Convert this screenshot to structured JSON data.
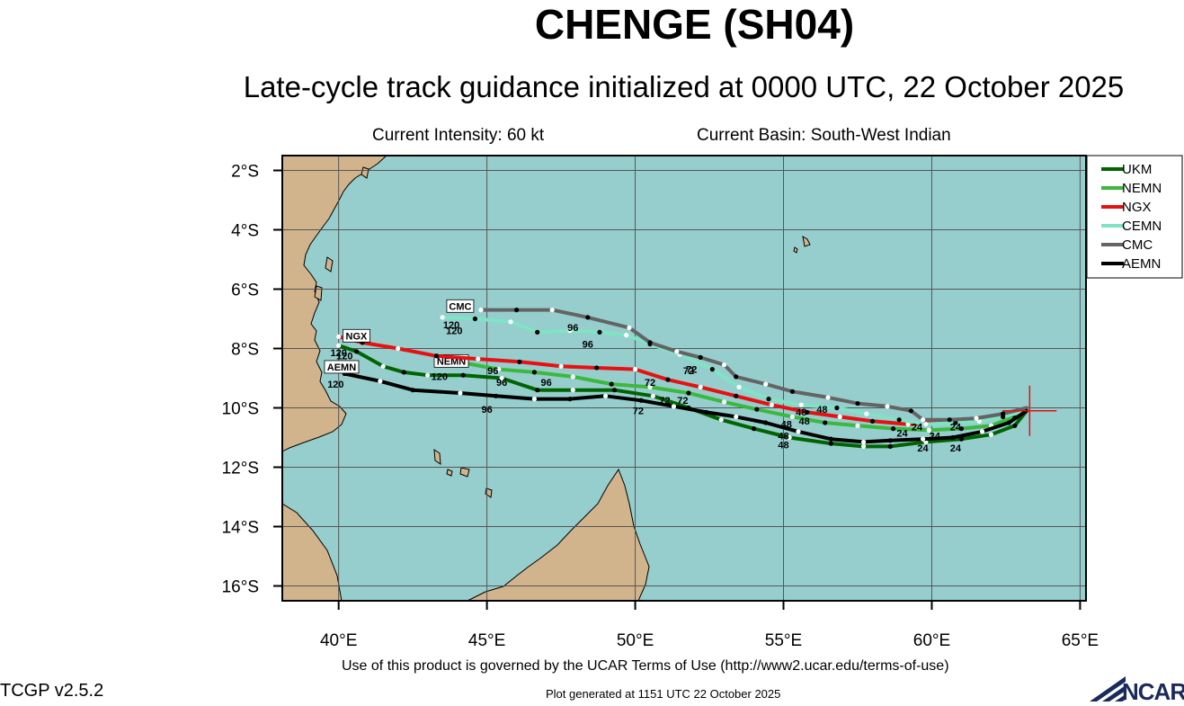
{
  "title": "CHENGE (SH04)",
  "subtitle": "Late-cycle track guidance initialized at 0000 UTC, 22 October 2025",
  "current_intensity": "Current Intensity: 60 kt",
  "current_basin": "Current Basin: South-West Indian",
  "terms": "Use of this product is governed by the UCAR Terms of Use (http://www2.ucar.edu/terms-of-use)",
  "version": "TCGP v2.5.2",
  "generated": "Plot generated at 1151 UTC   22 October 2025",
  "logo_text": "NCAR",
  "colors": {
    "ocean": "#96cece",
    "land": "#d2b48c",
    "grid": "#555555",
    "UKM": "#006400",
    "NEMN": "#3cb83c",
    "NGX": "#e81010",
    "CEMN": "#7fe3c4",
    "CMC": "#646464",
    "AEMN": "#000000",
    "current_position": "#e81010"
  },
  "chart_data": {
    "type": "map",
    "projection": "cylindrical",
    "lon_range": [
      38.1,
      65.2
    ],
    "lat_range": [
      -16.5,
      -1.5
    ],
    "lon_ticks": [
      {
        "value": 40,
        "label": "40°E"
      },
      {
        "value": 45,
        "label": "45°E"
      },
      {
        "value": 50,
        "label": "50°E"
      },
      {
        "value": 55,
        "label": "55°E"
      },
      {
        "value": 60,
        "label": "60°E"
      },
      {
        "value": 65,
        "label": "65°E"
      }
    ],
    "lat_ticks": [
      {
        "value": -2,
        "label": "2°S"
      },
      {
        "value": -4,
        "label": "4°S"
      },
      {
        "value": -6,
        "label": "6°S"
      },
      {
        "value": -8,
        "label": "8°S"
      },
      {
        "value": -10,
        "label": "10°S"
      },
      {
        "value": -12,
        "label": "12°S"
      },
      {
        "value": -14,
        "label": "14°S"
      },
      {
        "value": -16,
        "label": "16°S"
      }
    ],
    "grid": true,
    "legend_position": "top-right",
    "current_position": {
      "lon": 63.3,
      "lat": -10.1
    },
    "series": [
      {
        "name": "UKM",
        "points": [
          [
            63.2,
            -10.1
          ],
          [
            62.8,
            -10.6
          ],
          [
            62.0,
            -10.9
          ],
          [
            61.0,
            -11.05
          ],
          [
            59.8,
            -11.15
          ],
          [
            58.6,
            -11.3
          ],
          [
            57.7,
            -11.3
          ],
          [
            56.6,
            -11.2
          ],
          [
            55.2,
            -11.0
          ],
          [
            54.0,
            -10.7
          ],
          [
            52.9,
            -10.4
          ],
          [
            51.8,
            -10.0
          ],
          [
            50.6,
            -9.6
          ],
          [
            49.3,
            -9.4
          ],
          [
            47.9,
            -9.4
          ],
          [
            46.7,
            -9.4
          ],
          [
            45.5,
            -9.0
          ],
          [
            44.2,
            -8.9
          ],
          [
            43.0,
            -8.9
          ],
          [
            42.2,
            -8.8
          ],
          [
            41.5,
            -8.6
          ],
          [
            40.6,
            -8.1
          ],
          [
            40.0,
            -7.9
          ]
        ],
        "markers": [
          {
            "lon": 60.8,
            "lat": -11.1,
            "label": "24"
          },
          {
            "lon": 55.0,
            "lat": -11.0,
            "label": "48"
          },
          {
            "lon": 51.0,
            "lat": -9.5,
            "label": "72"
          },
          {
            "lon": 45.5,
            "lat": -8.9,
            "label": "96"
          },
          {
            "lon": 40.2,
            "lat": -8.0,
            "label": "120"
          }
        ]
      },
      {
        "name": "NEMN",
        "points": [
          [
            63.2,
            -10.1
          ],
          [
            62.8,
            -10.3
          ],
          [
            62.0,
            -10.6
          ],
          [
            61.0,
            -10.7
          ],
          [
            59.9,
            -10.75
          ],
          [
            58.7,
            -10.7
          ],
          [
            57.5,
            -10.6
          ],
          [
            56.4,
            -10.5
          ],
          [
            55.3,
            -10.3
          ],
          [
            54.1,
            -10.05
          ],
          [
            53.0,
            -9.8
          ],
          [
            51.8,
            -9.5
          ],
          [
            50.5,
            -9.3
          ],
          [
            49.2,
            -9.2
          ],
          [
            47.9,
            -8.95
          ],
          [
            46.6,
            -8.8
          ],
          [
            45.4,
            -8.7
          ],
          [
            44.3,
            -8.5
          ],
          [
            43.3,
            -8.45
          ]
        ],
        "markers": [
          {
            "lon": 60.1,
            "lat": -10.7,
            "label": "24"
          },
          {
            "lon": 55.1,
            "lat": -10.3,
            "label": "48"
          },
          {
            "lon": 51.6,
            "lat": -9.5,
            "label": "72"
          },
          {
            "lon": 47.0,
            "lat": -8.9,
            "label": "96"
          },
          {
            "lon": 43.4,
            "lat": -8.7,
            "label": "120"
          }
        ],
        "tag": {
          "lon": 43.8,
          "lat": -8.45,
          "text": "NEMN"
        }
      },
      {
        "name": "NGX",
        "points": [
          [
            63.2,
            -10.1
          ],
          [
            62.5,
            -10.2
          ],
          [
            61.5,
            -10.35
          ],
          [
            60.3,
            -10.5
          ],
          [
            59.2,
            -10.55
          ],
          [
            58.0,
            -10.45
          ],
          [
            56.9,
            -10.3
          ],
          [
            55.8,
            -10.15
          ],
          [
            54.6,
            -9.9
          ],
          [
            53.4,
            -9.6
          ],
          [
            52.2,
            -9.3
          ],
          [
            51.1,
            -9.05
          ],
          [
            50.0,
            -8.7
          ],
          [
            48.7,
            -8.65
          ],
          [
            47.5,
            -8.6
          ],
          [
            46.1,
            -8.45
          ],
          [
            44.7,
            -8.35
          ],
          [
            43.3,
            -8.25
          ],
          [
            42.0,
            -8.0
          ],
          [
            40.8,
            -7.8
          ],
          [
            40.0,
            -7.6
          ]
        ],
        "markers": [
          {
            "lon": 59.0,
            "lat": -10.6,
            "label": "24"
          },
          {
            "lon": 55.7,
            "lat": -10.2,
            "label": "48"
          },
          {
            "lon": 50.5,
            "lat": -8.9,
            "label": "72"
          },
          {
            "lon": 45.2,
            "lat": -8.5,
            "label": "96"
          },
          {
            "lon": 40.0,
            "lat": -7.9,
            "label": "120"
          }
        ],
        "tag": {
          "lon": 40.6,
          "lat": -7.6,
          "text": "NGX"
        }
      },
      {
        "name": "CEMN",
        "points": [
          [
            63.2,
            -10.1
          ],
          [
            62.4,
            -10.3
          ],
          [
            61.6,
            -10.45
          ],
          [
            60.8,
            -10.5
          ],
          [
            59.8,
            -10.55
          ],
          [
            58.9,
            -10.4
          ],
          [
            57.8,
            -10.2
          ],
          [
            56.8,
            -10.0
          ],
          [
            55.6,
            -9.9
          ],
          [
            54.5,
            -9.7
          ],
          [
            53.5,
            -9.3
          ],
          [
            52.6,
            -8.7
          ],
          [
            51.5,
            -8.2
          ],
          [
            50.5,
            -7.85
          ],
          [
            49.7,
            -7.55
          ],
          [
            48.8,
            -7.45
          ],
          [
            47.8,
            -7.4
          ],
          [
            46.7,
            -7.45
          ],
          [
            45.8,
            -7.1
          ],
          [
            44.6,
            -7.0
          ],
          [
            43.5,
            -6.95
          ]
        ],
        "markers": [
          {
            "lon": 60.8,
            "lat": -10.4,
            "label": "24"
          },
          {
            "lon": 55.6,
            "lat": -9.9,
            "label": "48"
          },
          {
            "lon": 51.8,
            "lat": -8.5,
            "label": "72"
          },
          {
            "lon": 48.4,
            "lat": -7.6,
            "label": "96"
          },
          {
            "lon": 43.9,
            "lat": -7.15,
            "label": "120"
          }
        ]
      },
      {
        "name": "CMC",
        "points": [
          [
            63.2,
            -10.0
          ],
          [
            62.4,
            -10.2
          ],
          [
            61.5,
            -10.35
          ],
          [
            60.6,
            -10.4
          ],
          [
            59.7,
            -10.4
          ],
          [
            59.3,
            -10.1
          ],
          [
            58.5,
            -9.95
          ],
          [
            57.5,
            -9.85
          ],
          [
            56.5,
            -9.65
          ],
          [
            55.3,
            -9.45
          ],
          [
            54.4,
            -9.2
          ],
          [
            53.4,
            -8.95
          ],
          [
            53.0,
            -8.55
          ],
          [
            52.2,
            -8.3
          ],
          [
            51.4,
            -8.1
          ],
          [
            50.5,
            -7.8
          ],
          [
            49.8,
            -7.3
          ],
          [
            48.4,
            -6.95
          ],
          [
            47.2,
            -6.7
          ],
          [
            46.0,
            -6.7
          ],
          [
            44.8,
            -6.7
          ]
        ],
        "markers": [
          {
            "lon": 59.5,
            "lat": -10.4,
            "label": "24"
          },
          {
            "lon": 56.3,
            "lat": -9.8,
            "label": "48"
          },
          {
            "lon": 51.9,
            "lat": -8.45,
            "label": "72"
          },
          {
            "lon": 47.9,
            "lat": -7.05,
            "label": "96"
          },
          {
            "lon": 43.8,
            "lat": -6.95,
            "label": "120"
          }
        ],
        "tag": {
          "lon": 44.1,
          "lat": -6.6,
          "text": "CMC"
        }
      },
      {
        "name": "AEMN",
        "points": [
          [
            63.2,
            -10.1
          ],
          [
            62.6,
            -10.5
          ],
          [
            61.7,
            -10.8
          ],
          [
            60.7,
            -11.0
          ],
          [
            59.7,
            -11.05
          ],
          [
            58.6,
            -11.1
          ],
          [
            57.7,
            -11.15
          ],
          [
            56.6,
            -11.05
          ],
          [
            55.5,
            -10.8
          ],
          [
            54.4,
            -10.5
          ],
          [
            53.4,
            -10.3
          ],
          [
            52.4,
            -10.15
          ],
          [
            51.3,
            -9.95
          ],
          [
            50.2,
            -9.75
          ],
          [
            49.0,
            -9.6
          ],
          [
            47.8,
            -9.7
          ],
          [
            46.6,
            -9.7
          ],
          [
            45.3,
            -9.6
          ],
          [
            44.1,
            -9.5
          ],
          [
            42.5,
            -9.4
          ],
          [
            41.4,
            -9.1
          ],
          [
            40.2,
            -8.85
          ]
        ],
        "markers": [
          {
            "lon": 59.7,
            "lat": -11.1,
            "label": "24"
          },
          {
            "lon": 55.0,
            "lat": -10.7,
            "label": "48"
          },
          {
            "lon": 50.1,
            "lat": -9.85,
            "label": "72"
          },
          {
            "lon": 45.0,
            "lat": -9.8,
            "label": "96"
          },
          {
            "lon": 39.9,
            "lat": -8.95,
            "label": "120"
          }
        ],
        "tag": {
          "lon": 40.1,
          "lat": -8.65,
          "text": "AEMN"
        }
      }
    ]
  }
}
